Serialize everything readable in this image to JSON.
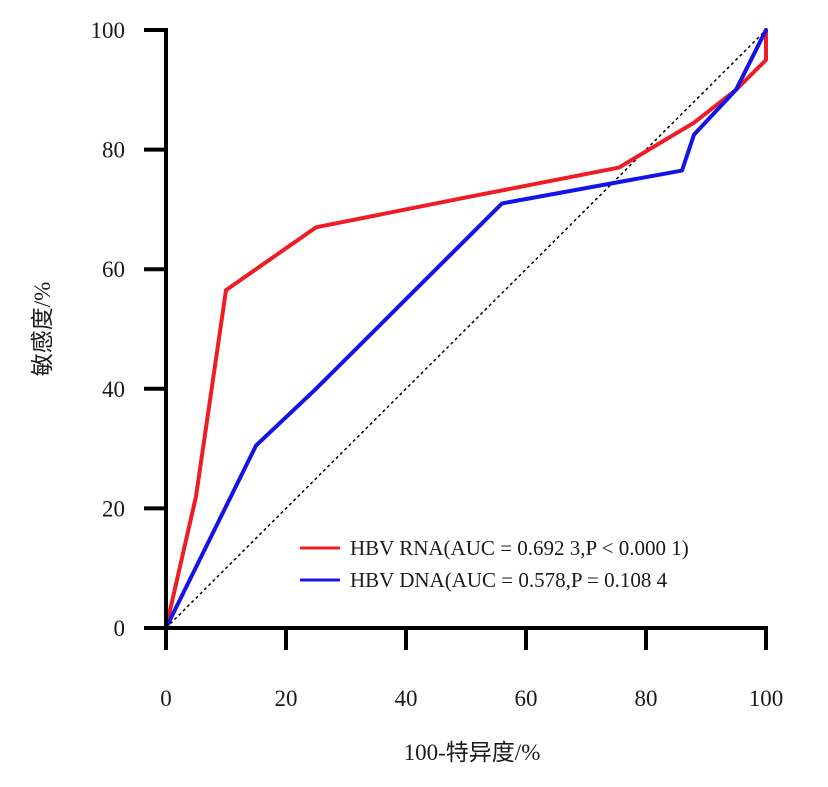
{
  "chart_data": {
    "type": "line",
    "title": "",
    "xlabel": "100-特异度/%",
    "ylabel": "敏感度/%",
    "xlim": [
      0,
      100
    ],
    "ylim": [
      0,
      100
    ],
    "xticks": [
      0,
      20,
      40,
      60,
      80,
      100
    ],
    "yticks": [
      0,
      20,
      40,
      60,
      80,
      100
    ],
    "grid": false,
    "legend_position": "bottom-right",
    "reference_line": {
      "x": [
        0,
        100
      ],
      "y": [
        0,
        100
      ],
      "style": "dotted",
      "color": "#000000"
    },
    "series": [
      {
        "name": "HBV RNA(AUC = 0.692 3,P < 0.000 1)",
        "color": "#ee1c25",
        "x": [
          0,
          5,
          10,
          25,
          50,
          75.5,
          88,
          95,
          100,
          100
        ],
        "y": [
          0,
          22,
          56.5,
          67,
          72,
          77,
          84.5,
          90,
          95,
          100
        ]
      },
      {
        "name": "HBV DNA(AUC = 0.578,P = 0.108 4",
        "color": "#1414e6",
        "x": [
          0,
          15,
          25,
          40,
          50,
          56,
          86,
          88,
          95,
          100
        ],
        "y": [
          0,
          30.5,
          40,
          55,
          65,
          71,
          76.5,
          82.5,
          90,
          100
        ]
      }
    ]
  }
}
